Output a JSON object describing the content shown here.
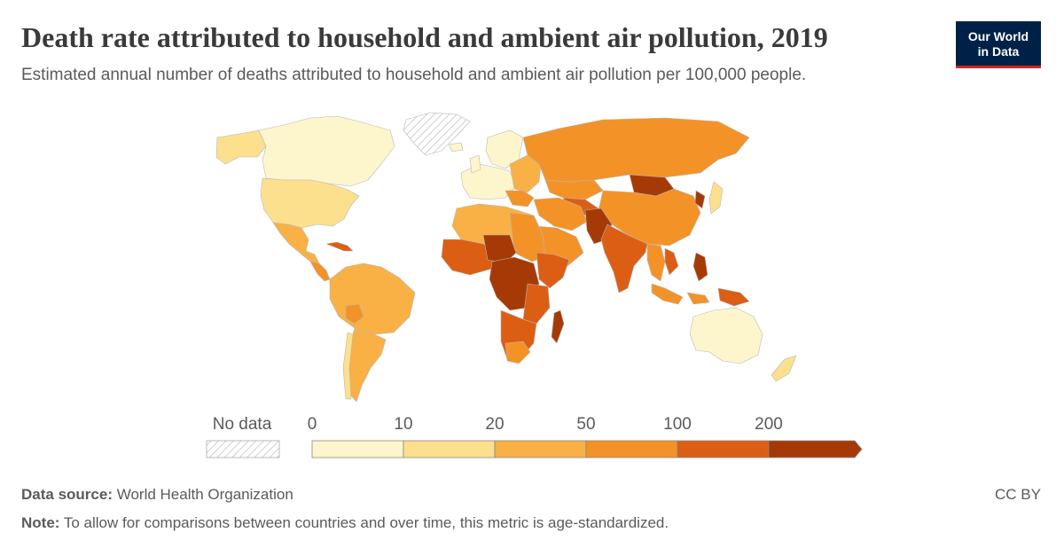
{
  "title": "Death rate attributed to household and ambient air pollution, 2019",
  "subtitle": "Estimated annual number of deaths attributed to household and ambient air pollution per 100,000 people.",
  "logo": {
    "line1": "Our World",
    "line2": "in Data"
  },
  "legend": {
    "no_data_label": "No data",
    "ticks": [
      "0",
      "10",
      "20",
      "50",
      "100",
      "200"
    ],
    "bins": [
      {
        "from": 0,
        "to": 10,
        "color": "#fdf6cc"
      },
      {
        "from": 10,
        "to": 20,
        "color": "#fde08e"
      },
      {
        "from": 20,
        "to": 50,
        "color": "#f9b045"
      },
      {
        "from": 50,
        "to": 100,
        "color": "#f39327"
      },
      {
        "from": 100,
        "to": 200,
        "color": "#dc5e14"
      },
      {
        "from": 200,
        "to": null,
        "color": "#a63a07"
      }
    ]
  },
  "footer": {
    "source_label": "Data source:",
    "source_value": "World Health Organization",
    "note_label": "Note:",
    "note_value": "To allow for comparisons between countries and over time, this metric is age-standardized.",
    "license": "CC BY"
  }
}
